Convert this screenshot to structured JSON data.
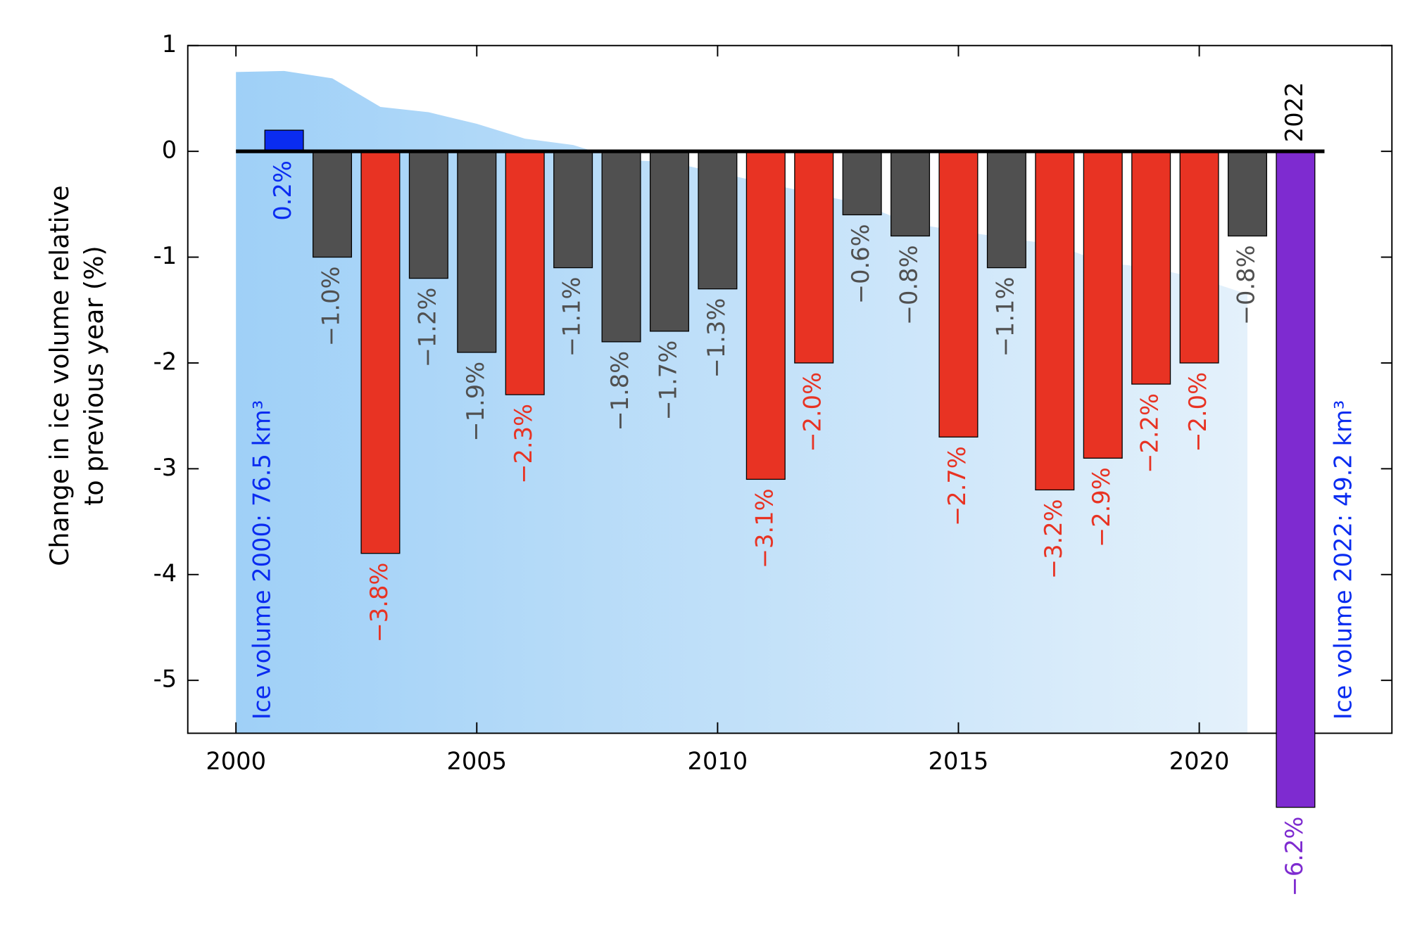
{
  "chart_data": {
    "type": "bar",
    "y_label_lines": [
      "Change in ice volume relative",
      "to previous year (%)"
    ],
    "x": [
      2001,
      2002,
      2003,
      2004,
      2005,
      2006,
      2007,
      2008,
      2009,
      2010,
      2011,
      2012,
      2013,
      2014,
      2015,
      2016,
      2017,
      2018,
      2019,
      2020,
      2021,
      2022
    ],
    "values": [
      0.2,
      -1.0,
      -3.8,
      -1.2,
      -1.9,
      -2.3,
      -1.1,
      -1.8,
      -1.7,
      -1.3,
      -3.1,
      -2.0,
      -0.6,
      -0.8,
      -2.7,
      -1.1,
      -3.2,
      -2.9,
      -2.2,
      -2.0,
      -0.8,
      -6.2
    ],
    "value_labels": [
      "0.2%",
      "−1.0%",
      "−3.8%",
      "−1.2%",
      "−1.9%",
      "−2.3%",
      "−1.1%",
      "−1.8%",
      "−1.7%",
      "−1.3%",
      "−3.1%",
      "−2.0%",
      "−0.6%",
      "−0.8%",
      "−2.7%",
      "−1.1%",
      "−3.2%",
      "−2.9%",
      "−2.2%",
      "−2.0%",
      "−0.8%",
      "−6.2%"
    ],
    "colors": [
      "#0a2cf0",
      "#505050",
      "#e83323",
      "#505050",
      "#505050",
      "#e83323",
      "#505050",
      "#505050",
      "#505050",
      "#505050",
      "#e83323",
      "#e83323",
      "#505050",
      "#505050",
      "#e83323",
      "#505050",
      "#e83323",
      "#e83323",
      "#e83323",
      "#e83323",
      "#505050",
      "#7e2bd0"
    ],
    "label_colors": [
      "#0a2cf0",
      "#505050",
      "#e83323",
      "#505050",
      "#505050",
      "#e83323",
      "#505050",
      "#505050",
      "#505050",
      "#505050",
      "#e83323",
      "#e83323",
      "#505050",
      "#505050",
      "#e83323",
      "#505050",
      "#e83323",
      "#e83323",
      "#e83323",
      "#e83323",
      "#505050",
      "#7e2bd0"
    ],
    "volume_area": {
      "x": [
        2000,
        2001,
        2002,
        2003,
        2004,
        2005,
        2006,
        2007,
        2008,
        2009,
        2010,
        2011,
        2012,
        2013,
        2014,
        2015,
        2016,
        2017,
        2018,
        2019,
        2020,
        2021
      ],
      "values": [
        0.75,
        0.76,
        0.69,
        0.42,
        0.37,
        0.26,
        0.12,
        0.06,
        -0.08,
        -0.1,
        -0.2,
        -0.3,
        -0.4,
        -0.5,
        -0.68,
        -0.75,
        -0.82,
        -0.88,
        -1.05,
        -1.1,
        -1.2,
        -1.35
      ],
      "colors": [
        "#9fd0f7",
        "#e4f1fb"
      ]
    },
    "highlight_label": "2022",
    "annotations": [
      "Ice volume 2000: 76.5 km³",
      "Ice volume 2022: 49.2 km³"
    ],
    "annotation_color": "#0a2cf0",
    "xlim": [
      1999,
      2024
    ],
    "ylim": [
      -5.5,
      1
    ],
    "xticks": [
      2000,
      2005,
      2010,
      2015,
      2020
    ],
    "yticks": [
      -5,
      -4,
      -3,
      -2,
      -1,
      0,
      1
    ]
  }
}
